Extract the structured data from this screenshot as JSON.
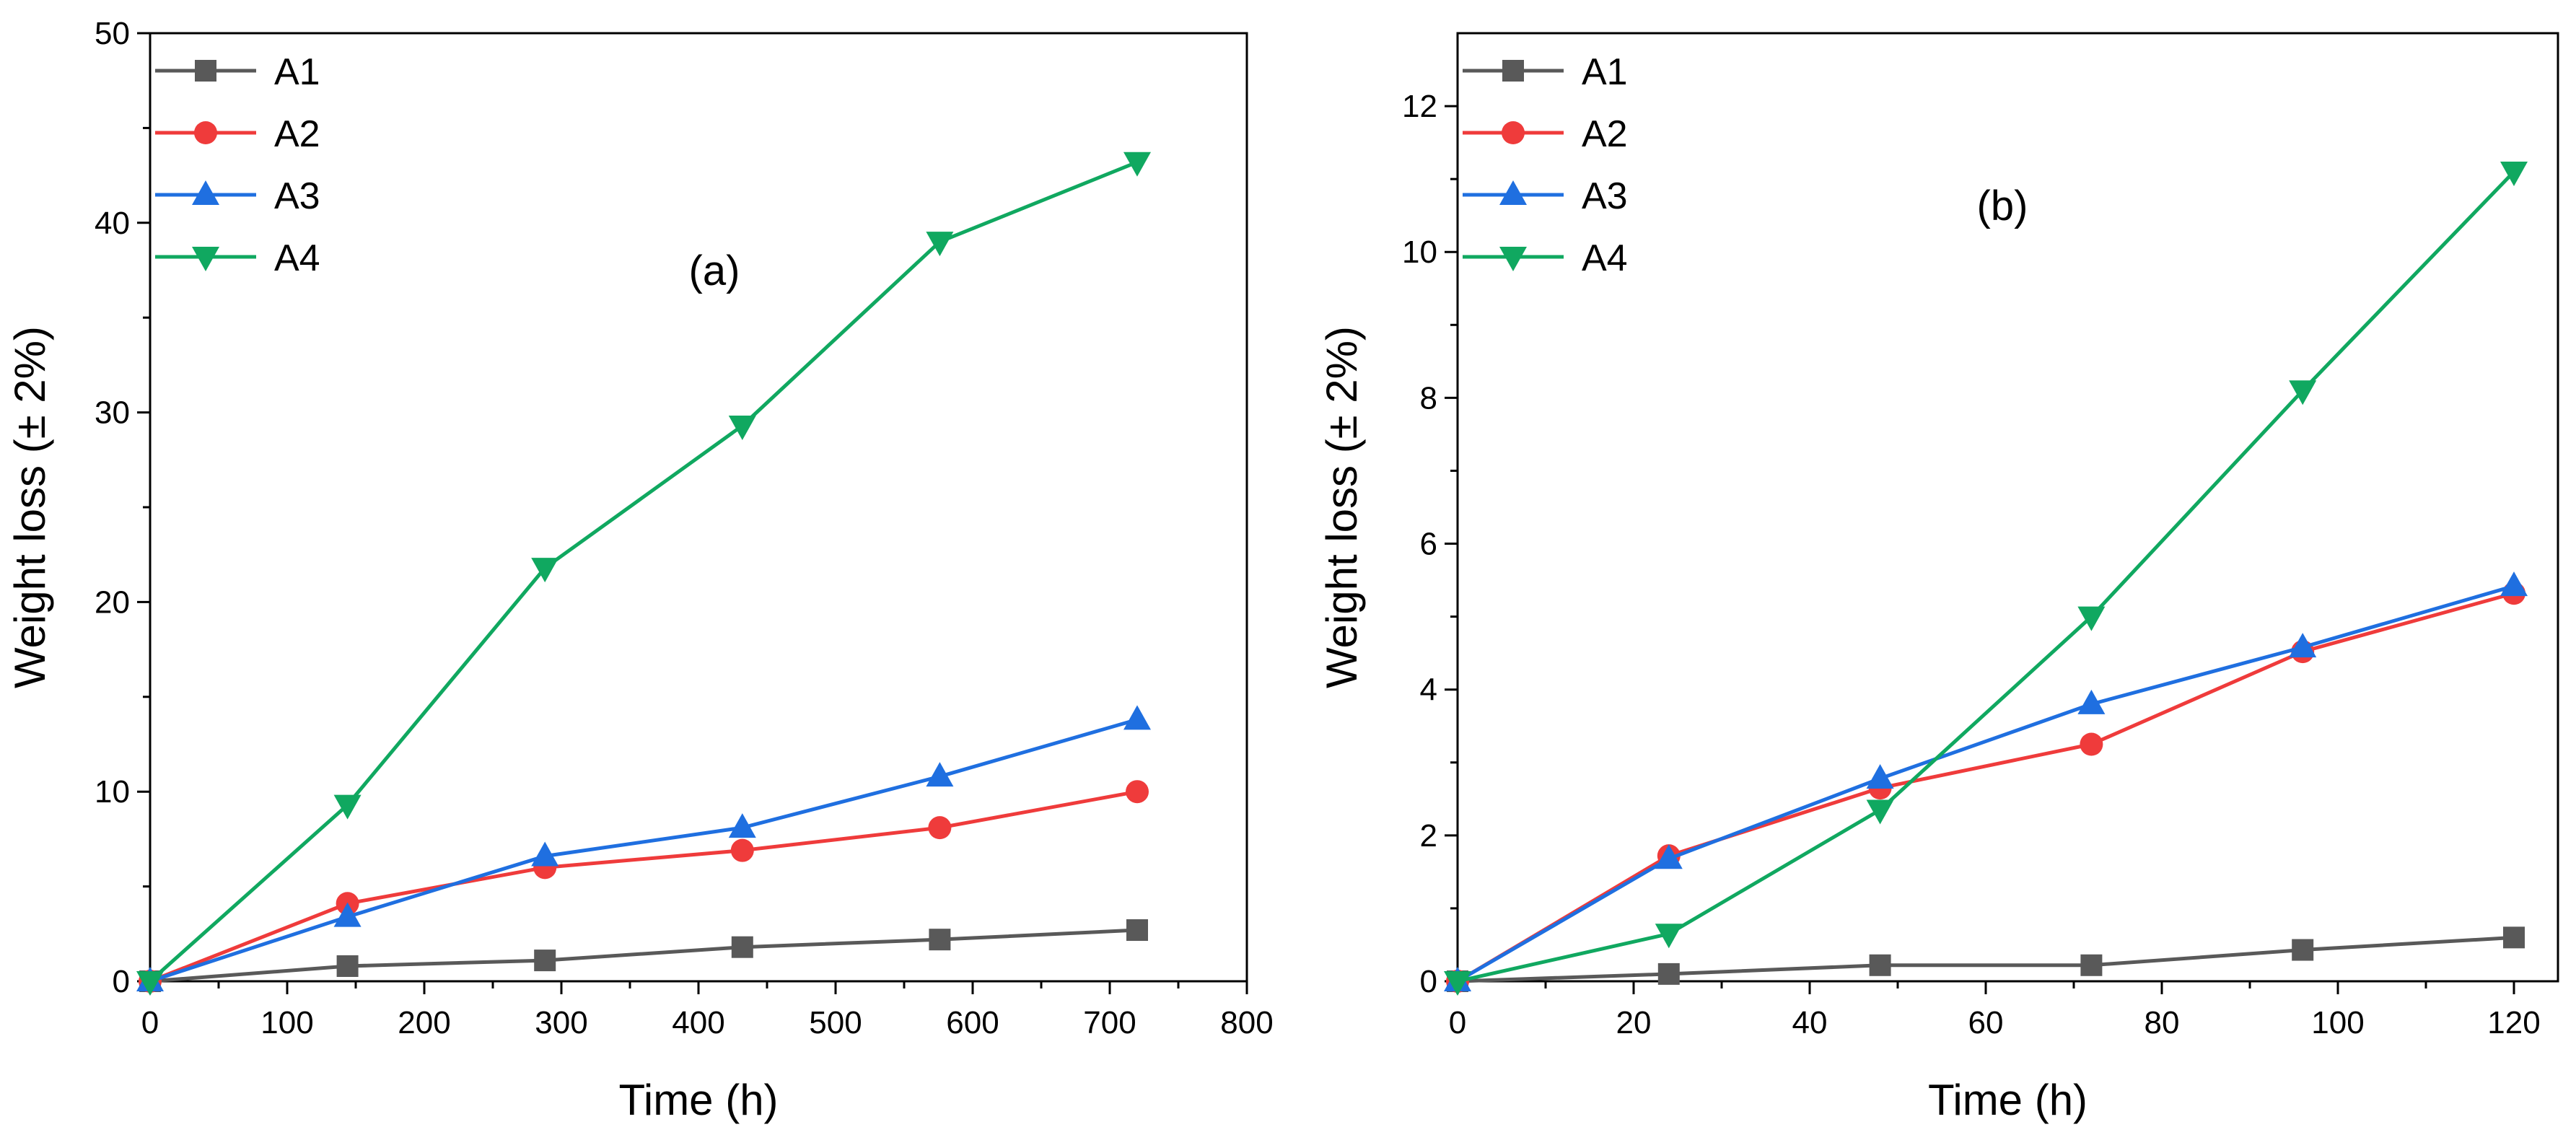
{
  "chart_data": [
    {
      "type": "line",
      "panel_label": "(a)",
      "xlabel": "Time (h)",
      "ylabel": "Weight loss (± 2%)",
      "xlim": [
        0,
        800
      ],
      "ylim": [
        0,
        50
      ],
      "xticks": [
        0,
        100,
        200,
        300,
        400,
        500,
        600,
        700,
        800
      ],
      "yticks": [
        0,
        10,
        20,
        30,
        40,
        50
      ],
      "legend_position": "top-left",
      "grid": false,
      "series": [
        {
          "name": "A1",
          "color": "#595959",
          "marker": "square",
          "x": [
            0,
            144,
            288,
            432,
            576,
            720
          ],
          "values": [
            0,
            0.8,
            1.1,
            1.8,
            2.2,
            2.7
          ]
        },
        {
          "name": "A2",
          "color": "#ef3b3b",
          "marker": "circle",
          "x": [
            0,
            144,
            288,
            432,
            576,
            720
          ],
          "values": [
            0,
            4.1,
            6.0,
            6.9,
            8.1,
            10.0
          ]
        },
        {
          "name": "A3",
          "color": "#1f6fe0",
          "marker": "triangle-up",
          "x": [
            0,
            144,
            288,
            432,
            576,
            720
          ],
          "values": [
            0,
            3.4,
            6.6,
            8.1,
            10.8,
            13.8
          ]
        },
        {
          "name": "A4",
          "color": "#10a860",
          "marker": "triangle-down",
          "x": [
            0,
            144,
            288,
            432,
            576,
            720
          ],
          "values": [
            0,
            9.3,
            21.8,
            29.3,
            39.0,
            43.2
          ]
        }
      ]
    },
    {
      "type": "line",
      "panel_label": "(b)",
      "xlabel": "Time (h)",
      "ylabel": "Weight loss (± 2%)",
      "xlim": [
        0,
        125
      ],
      "ylim": [
        0,
        13
      ],
      "xticks": [
        0,
        20,
        40,
        60,
        80,
        100,
        120
      ],
      "yticks": [
        0,
        2,
        4,
        6,
        8,
        10,
        12
      ],
      "legend_position": "top-left",
      "grid": false,
      "series": [
        {
          "name": "A1",
          "color": "#595959",
          "marker": "square",
          "x": [
            0,
            24,
            48,
            72,
            96,
            120
          ],
          "values": [
            0,
            0.1,
            0.22,
            0.22,
            0.43,
            0.6
          ]
        },
        {
          "name": "A2",
          "color": "#ef3b3b",
          "marker": "circle",
          "x": [
            0,
            24,
            48,
            72,
            96,
            120
          ],
          "values": [
            0,
            1.72,
            2.65,
            3.25,
            4.52,
            5.32
          ]
        },
        {
          "name": "A3",
          "color": "#1f6fe0",
          "marker": "triangle-up",
          "x": [
            0,
            24,
            48,
            72,
            96,
            120
          ],
          "values": [
            0,
            1.68,
            2.78,
            3.8,
            4.58,
            5.42
          ]
        },
        {
          "name": "A4",
          "color": "#10a860",
          "marker": "triangle-down",
          "x": [
            0,
            24,
            48,
            72,
            96,
            120
          ],
          "values": [
            0,
            0.65,
            2.35,
            5.0,
            8.1,
            11.1
          ]
        }
      ]
    }
  ]
}
